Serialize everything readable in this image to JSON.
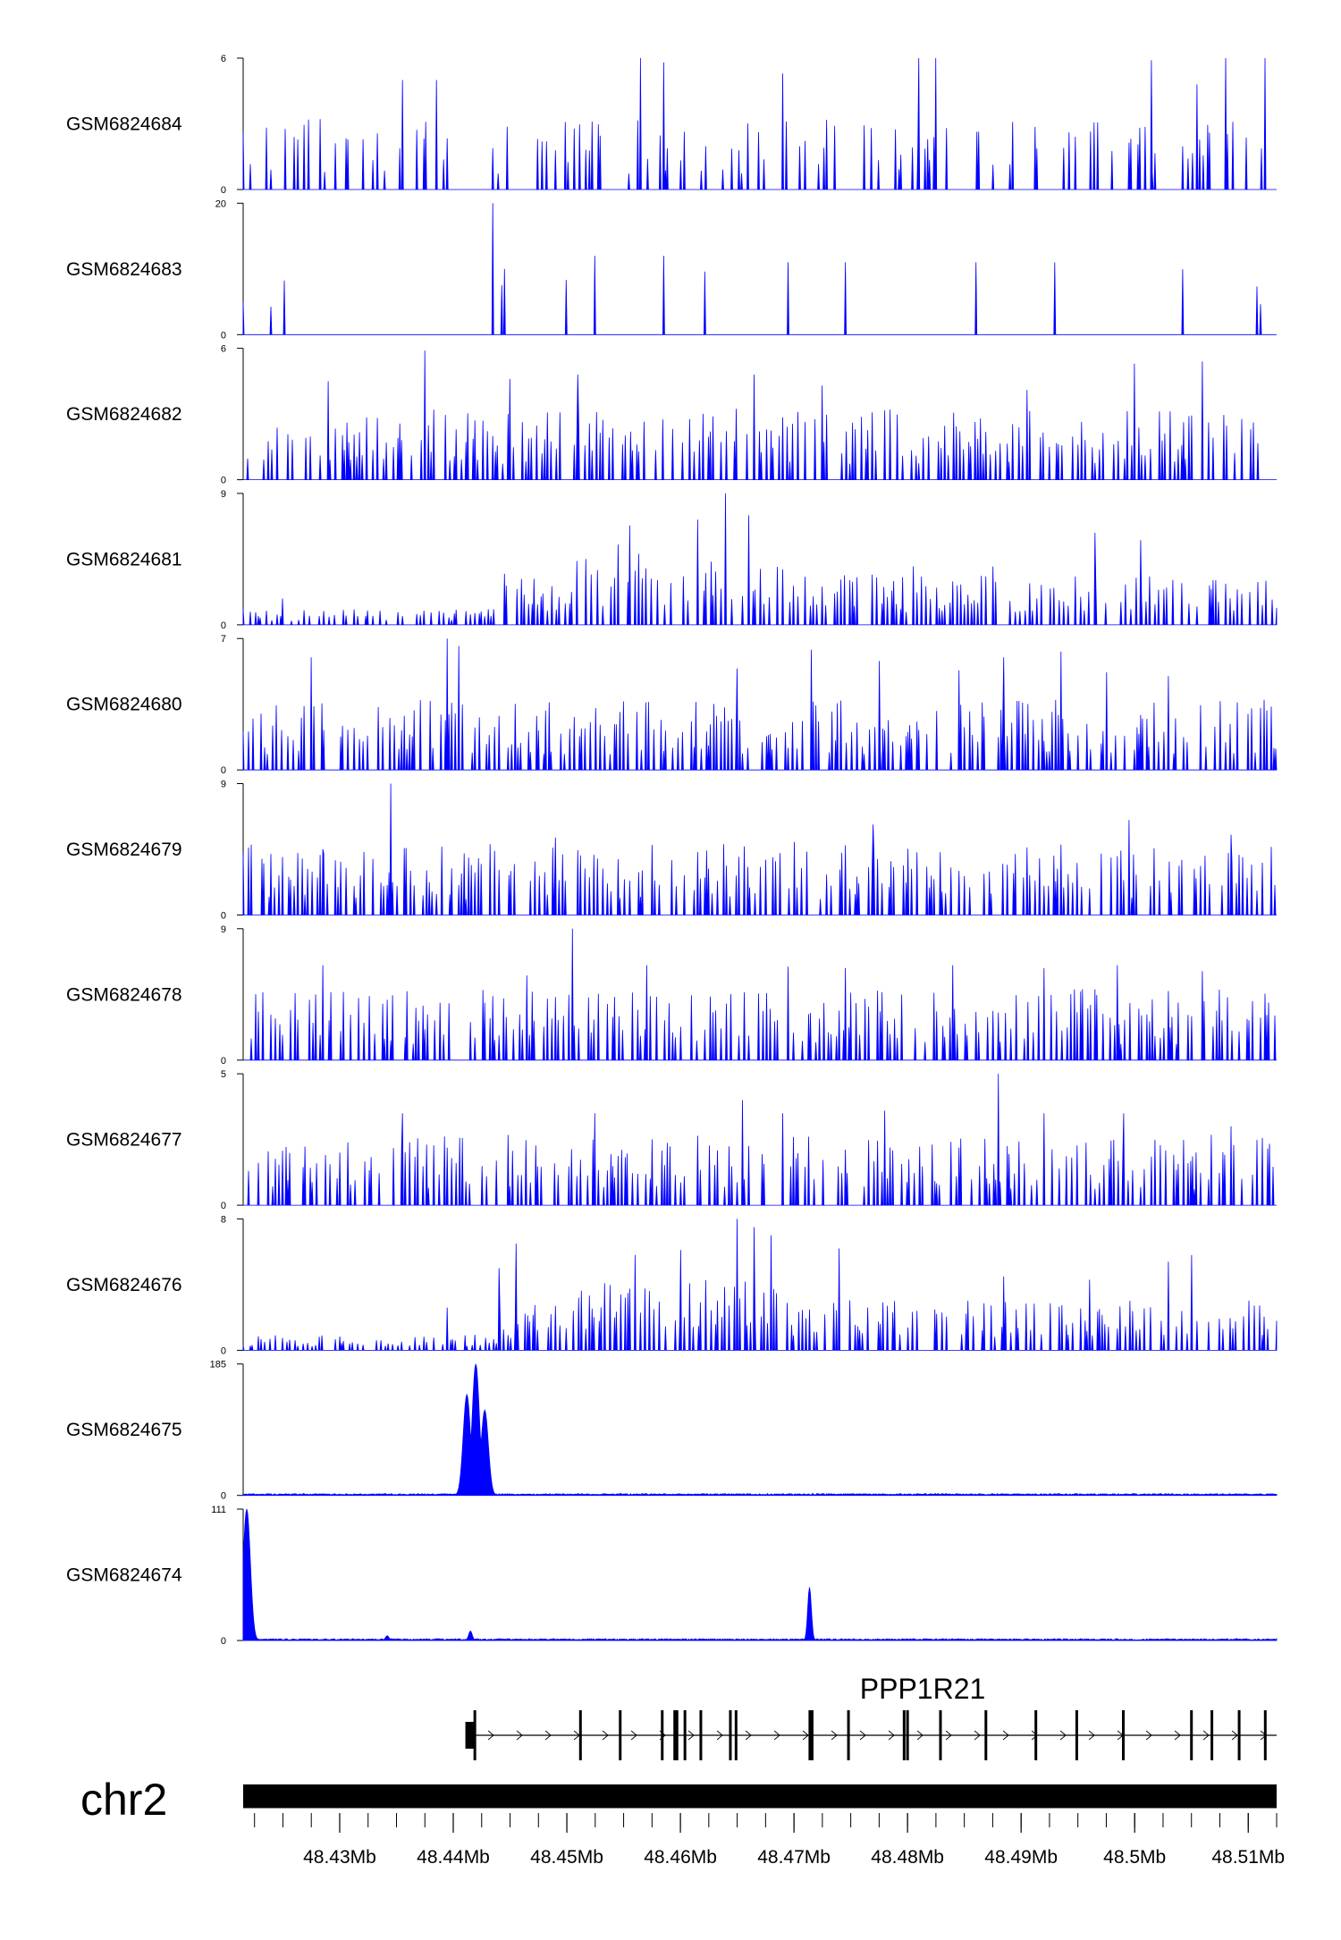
{
  "chart_data": {
    "type": "area",
    "series_color": "#0000FF",
    "x_range": [
      48.4215,
      48.5125
    ],
    "x_unit": "Mb",
    "tracks": [
      {
        "name": "GSM6824684",
        "ymax": 6,
        "ymin": 0,
        "pattern": "sparse",
        "peaks": [
          [
            48.4355,
            5.0
          ],
          [
            48.4385,
            5.0
          ],
          [
            48.4565,
            6.0
          ],
          [
            48.4585,
            5.8
          ],
          [
            48.469,
            5.3
          ],
          [
            48.481,
            6.0
          ],
          [
            48.4825,
            6.0
          ],
          [
            48.5015,
            5.9
          ],
          [
            48.5055,
            4.8
          ],
          [
            48.508,
            6.0
          ],
          [
            48.5115,
            6.0
          ]
        ]
      },
      {
        "name": "GSM6824683",
        "ymax": 20,
        "ymin": 0,
        "pattern": "spiky",
        "peaks": [
          [
            48.4435,
            20.0
          ],
          [
            48.4445,
            10.0
          ],
          [
            48.4525,
            12.0
          ],
          [
            48.4585,
            12.0
          ],
          [
            48.4695,
            11.0
          ],
          [
            48.4745,
            11.0
          ],
          [
            48.486,
            11.0
          ],
          [
            48.493,
            11.0
          ]
        ]
      },
      {
        "name": "GSM6824682",
        "ymax": 6,
        "ymin": 0,
        "pattern": "dense",
        "peaks": [
          [
            48.429,
            4.5
          ],
          [
            48.4375,
            5.9
          ],
          [
            48.445,
            4.6
          ],
          [
            48.451,
            4.8
          ],
          [
            48.4665,
            4.8
          ],
          [
            48.4725,
            4.3
          ],
          [
            48.4905,
            4.1
          ],
          [
            48.5,
            5.3
          ],
          [
            48.506,
            5.4
          ]
        ]
      },
      {
        "name": "GSM6824681",
        "ymax": 9,
        "ymin": 0,
        "pattern": "broad",
        "peaks": [
          [
            48.425,
            1.8
          ],
          [
            48.4445,
            3.5
          ],
          [
            48.4545,
            5.5
          ],
          [
            48.4555,
            6.8
          ],
          [
            48.4615,
            7.2
          ],
          [
            48.464,
            9.0
          ],
          [
            48.466,
            7.5
          ],
          [
            48.469,
            3.8
          ],
          [
            48.4805,
            4.0
          ],
          [
            48.4875,
            4.0
          ],
          [
            48.4965,
            6.3
          ],
          [
            48.5005,
            5.8
          ]
        ]
      },
      {
        "name": "GSM6824680",
        "ymax": 7,
        "ymin": 0,
        "pattern": "dense",
        "peaks": [
          [
            48.4275,
            6.0
          ],
          [
            48.4395,
            7.0
          ],
          [
            48.4405,
            6.6
          ],
          [
            48.465,
            5.4
          ],
          [
            48.4715,
            6.4
          ],
          [
            48.4775,
            5.8
          ],
          [
            48.4845,
            5.3
          ],
          [
            48.4885,
            6.0
          ],
          [
            48.4935,
            6.3
          ],
          [
            48.4975,
            5.2
          ],
          [
            48.503,
            5.0
          ]
        ]
      },
      {
        "name": "GSM6824679",
        "ymax": 9,
        "ymin": 0,
        "pattern": "dense",
        "peaks": [
          [
            48.4345,
            9.0
          ],
          [
            48.4285,
            4.5
          ],
          [
            48.449,
            5.3
          ],
          [
            48.4615,
            4.3
          ],
          [
            48.47,
            5.0
          ],
          [
            48.477,
            6.2
          ],
          [
            48.4995,
            6.5
          ],
          [
            48.5085,
            5.5
          ]
        ]
      },
      {
        "name": "GSM6824678",
        "ymax": 9,
        "ymin": 0,
        "pattern": "dense",
        "peaks": [
          [
            48.4285,
            6.5
          ],
          [
            48.4505,
            9.0
          ],
          [
            48.4465,
            5.8
          ],
          [
            48.457,
            6.5
          ],
          [
            48.4695,
            6.4
          ],
          [
            48.4745,
            6.3
          ],
          [
            48.484,
            6.5
          ],
          [
            48.492,
            6.3
          ],
          [
            48.4985,
            6.5
          ],
          [
            48.506,
            6.1
          ]
        ]
      },
      {
        "name": "GSM6824677",
        "ymax": 5,
        "ymin": 0,
        "pattern": "dense",
        "peaks": [
          [
            48.4355,
            3.5
          ],
          [
            48.4525,
            3.5
          ],
          [
            48.4655,
            4.0
          ],
          [
            48.469,
            3.5
          ],
          [
            48.478,
            3.6
          ],
          [
            48.488,
            5.0
          ],
          [
            48.492,
            3.5
          ],
          [
            48.499,
            3.5
          ],
          [
            48.5085,
            3.0
          ]
        ]
      },
      {
        "name": "GSM6824676",
        "ymax": 8,
        "ymin": 0,
        "pattern": "broad",
        "peaks": [
          [
            48.4395,
            2.6
          ],
          [
            48.444,
            5.0
          ],
          [
            48.4455,
            6.5
          ],
          [
            48.456,
            5.8
          ],
          [
            48.46,
            6.1
          ],
          [
            48.465,
            8.0
          ],
          [
            48.4665,
            7.5
          ],
          [
            48.468,
            7.0
          ],
          [
            48.474,
            6.2
          ],
          [
            48.4885,
            4.5
          ],
          [
            48.496,
            4.3
          ],
          [
            48.503,
            5.4
          ],
          [
            48.505,
            5.8
          ]
        ]
      },
      {
        "name": "GSM6824675",
        "ymax": 185,
        "ymin": 0,
        "pattern": "peaks",
        "peaks": [
          [
            48.4412,
            142.0
          ],
          [
            48.442,
            185.0
          ],
          [
            48.4428,
            120.0
          ]
        ]
      },
      {
        "name": "GSM6824674",
        "ymax": 111,
        "ymin": 0,
        "pattern": "peaks",
        "peaks": [
          [
            48.4218,
            111.0
          ],
          [
            48.4714,
            45.0
          ],
          [
            48.4415,
            8.0
          ],
          [
            48.4342,
            4.0
          ]
        ]
      }
    ],
    "gene": {
      "name": "PPP1R21",
      "start": 48.4415,
      "end": 48.5125,
      "exons": [
        48.4415,
        48.4419,
        48.4512,
        48.4547,
        48.4584,
        48.4595,
        48.4597,
        48.4604,
        48.4618,
        48.4644,
        48.4649,
        48.4714,
        48.4716,
        48.4748,
        48.4797,
        48.48,
        48.4829,
        48.4869,
        48.4913,
        48.4949,
        48.499,
        48.505,
        48.5068,
        48.5092,
        48.5115
      ]
    },
    "chromosome": "chr2",
    "x_ticks": [
      {
        "value": 48.43,
        "label": "48.43Mb"
      },
      {
        "value": 48.44,
        "label": "48.44Mb"
      },
      {
        "value": 48.45,
        "label": "48.45Mb"
      },
      {
        "value": 48.46,
        "label": "48.46Mb"
      },
      {
        "value": 48.47,
        "label": "48.47Mb"
      },
      {
        "value": 48.48,
        "label": "48.48Mb"
      },
      {
        "value": 48.49,
        "label": "48.49Mb"
      },
      {
        "value": 48.5,
        "label": "48.5Mb"
      },
      {
        "value": 48.51,
        "label": "48.51Mb"
      }
    ]
  }
}
